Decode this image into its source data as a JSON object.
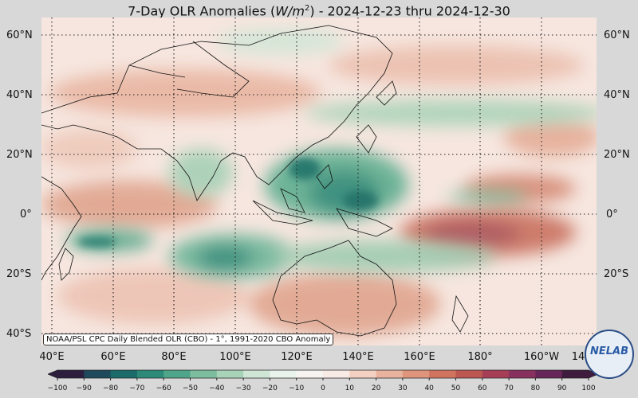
{
  "title": {
    "prefix": "7-Day OLR Anomalies (",
    "unit_main": "W/m",
    "unit_exp": "2",
    "suffix": ") - 2024-12-23 thru 2024-12-30"
  },
  "lat_labels": [
    "60°N",
    "40°N",
    "20°N",
    "0°",
    "20°S",
    "40°S"
  ],
  "lon_labels": [
    "40°E",
    "60°E",
    "80°E",
    "100°E",
    "120°E",
    "140°E",
    "160°E",
    "180°",
    "160°W",
    "14"
  ],
  "source_note": "NOAA/PSL CPC Daily Blended OLR (CBO) - 1°, 1991-2020 CBO Anomaly",
  "colorbar": {
    "ticks": [
      "−100",
      "−90",
      "−80",
      "−70",
      "−60",
      "−50",
      "−40",
      "−30",
      "−20",
      "−10",
      "0",
      "10",
      "20",
      "30",
      "40",
      "50",
      "60",
      "70",
      "80",
      "90",
      "100"
    ],
    "colors": [
      "#2d1e3e",
      "#1e4a5c",
      "#1a6b6a",
      "#2e8a78",
      "#4ea58a",
      "#7dbd9f",
      "#a9d3b8",
      "#cfe6d6",
      "#eaf3ec",
      "#f7f3f1",
      "#f8ebe5",
      "#f2d0c2",
      "#e9b29e",
      "#df947c",
      "#d1745f",
      "#bd5752",
      "#a63e58",
      "#88305e",
      "#662659",
      "#3f1b3d"
    ]
  },
  "logo": {
    "text_a": "NE",
    "text_b": "LAB"
  }
}
